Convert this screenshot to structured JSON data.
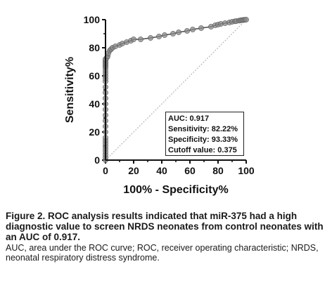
{
  "chart_data": {
    "type": "line",
    "title": "",
    "xlabel": "100% - Specificity%",
    "ylabel": "Sensitivity%",
    "xlim": [
      0,
      100
    ],
    "ylim": [
      0,
      100
    ],
    "xticks": [
      "0",
      "20",
      "40",
      "60",
      "80",
      "100"
    ],
    "yticks": [
      "0",
      "20",
      "40",
      "60",
      "80",
      "100"
    ],
    "grid": false,
    "legend": "none",
    "colors": {
      "curve": "#4a4a4a",
      "marker": "#8a8a8a",
      "reference": "#aaaaaa"
    },
    "series": [
      {
        "x": [
          0,
          0,
          0,
          0,
          0,
          0,
          0,
          0,
          0,
          0,
          0,
          0,
          0,
          0,
          0,
          0,
          0,
          0,
          0,
          0,
          0,
          0,
          0,
          0,
          0,
          0,
          0,
          0,
          0,
          0,
          1,
          1.5,
          2,
          3,
          4,
          5,
          7,
          10,
          12,
          15,
          18,
          20,
          25,
          32,
          38,
          42,
          48,
          52,
          58,
          62,
          68,
          75,
          78,
          80,
          82,
          85,
          88,
          90,
          92,
          93,
          95,
          96,
          97,
          98,
          99,
          100
        ],
        "y": [
          0,
          2,
          4,
          6,
          8,
          10,
          12,
          14,
          16,
          20,
          24,
          28,
          32,
          36,
          40,
          44,
          48,
          52,
          56,
          58,
          60,
          62,
          64,
          66,
          67,
          68,
          69,
          70,
          71,
          72,
          73,
          74,
          76,
          78,
          79,
          80,
          81,
          82,
          83,
          84,
          85,
          86,
          86,
          87,
          88,
          89,
          90,
          91,
          92,
          93,
          94,
          95,
          96,
          96.5,
          97,
          97.5,
          98,
          98.5,
          98.8,
          99,
          99.3,
          99.5,
          99.7,
          99.8,
          99.9,
          100
        ]
      }
    ],
    "reference_line": {
      "x": [
        0,
        100
      ],
      "y": [
        0,
        100
      ]
    },
    "stats": {
      "auc": "AUC: 0.917",
      "sensitivity": "Sensitivity: 82.22%",
      "specificity": "Specificity: 93.33%",
      "cutoff": "Cutoff value: 0.375"
    }
  },
  "caption": {
    "main": "Figure 2. ROC analysis results indicated that miR-375 had a high diagnostic value to screen NRDS neonates from control neonates with an AUC of 0.917.",
    "note": "AUC, area under the ROC curve; ROC, receiver operating characteristic; NRDS, neonatal respiratory distress syndrome."
  }
}
